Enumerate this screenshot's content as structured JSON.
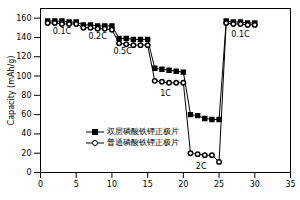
{
  "chart_data": {
    "type": "line",
    "y_label": "Capacity (mAh/g)",
    "x": [
      1,
      2,
      3,
      4,
      5,
      6,
      7,
      8,
      9,
      10,
      11,
      12,
      13,
      14,
      15,
      16,
      17,
      18,
      19,
      20,
      21,
      22,
      23,
      24,
      25,
      26,
      27,
      28,
      29,
      30
    ],
    "series": [
      {
        "name": "双层磷酸铁锂正极片",
        "color": "#000000",
        "marker": "square",
        "line_style": "solid",
        "values": [
          157,
          157,
          157,
          156,
          156,
          153,
          153,
          152,
          152,
          152,
          139,
          139,
          138,
          138,
          138,
          108,
          107,
          106,
          105,
          104,
          60,
          59,
          56,
          55,
          55,
          157,
          156,
          156,
          155,
          155
        ]
      },
      {
        "name": "普通磷酸铁锂正极片",
        "color": "#000000",
        "marker": "circle",
        "line_style": "solid",
        "values": [
          155,
          155,
          154,
          154,
          154,
          150,
          150,
          149,
          149,
          148,
          134,
          133,
          132,
          132,
          132,
          95,
          94,
          93,
          93,
          93,
          20,
          19,
          18,
          18,
          11,
          155,
          154,
          154,
          153,
          153
        ]
      }
    ],
    "annotations": [
      {
        "text": "0.1C",
        "x": 3,
        "y": 146
      },
      {
        "text": "0.2C",
        "x": 8,
        "y": 141
      },
      {
        "text": "0.5C",
        "x": 11.5,
        "y": 126
      },
      {
        "text": "1C",
        "x": 17.5,
        "y": 82
      },
      {
        "text": "2C",
        "x": 22.5,
        "y": 6
      },
      {
        "text": "0.1C",
        "x": 28,
        "y": 143
      }
    ],
    "xlim": [
      0,
      35
    ],
    "xticks": [
      0,
      5,
      10,
      15,
      20,
      25,
      30,
      35
    ],
    "ylim": [
      0,
      170
    ],
    "yticks": [
      0,
      20,
      40,
      60,
      80,
      100,
      120,
      140,
      160
    ],
    "legend": "lower center",
    "grid": false
  }
}
